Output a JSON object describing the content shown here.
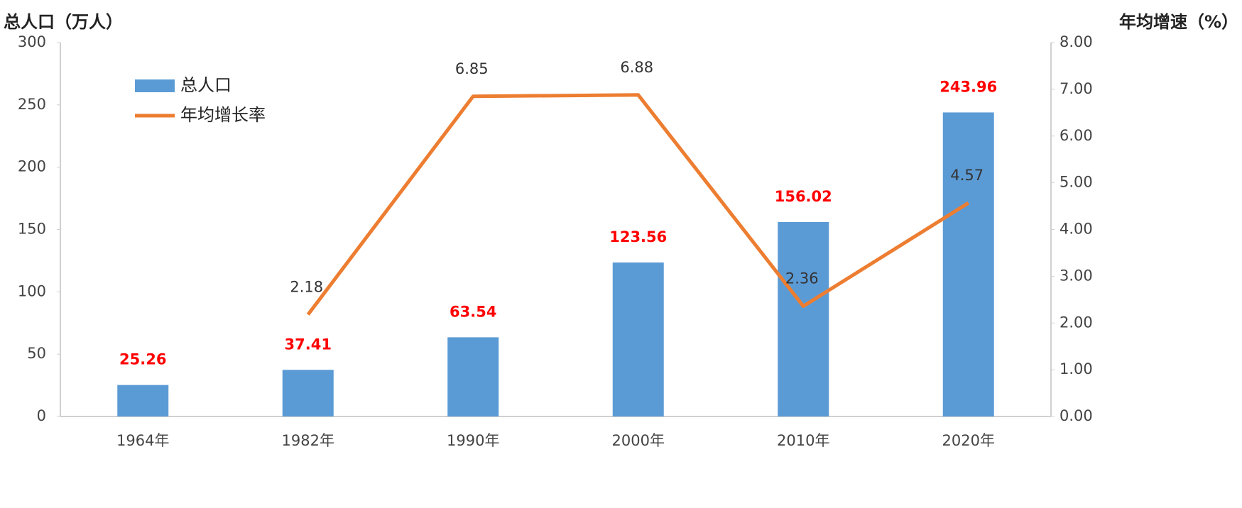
{
  "chart_data": {
    "type": "bar-line",
    "y_label": "总人口（万人）",
    "y2_label": "年均增速（%）",
    "categories": [
      "1964年",
      "1982年",
      "1990年",
      "2000年",
      "2010年",
      "2020年"
    ],
    "series": [
      {
        "name": "总人口",
        "type": "bar",
        "color": "#5b9bd5",
        "label_color": "#ff0000",
        "values": [
          25.26,
          37.41,
          63.54,
          123.56,
          156.02,
          243.96
        ]
      },
      {
        "name": "年均增长率",
        "type": "line",
        "axis": "y2",
        "color": "#ed7d31",
        "label_color": "#333333",
        "values": [
          null,
          2.18,
          6.85,
          6.88,
          2.36,
          4.57
        ]
      }
    ],
    "ylim": [
      0,
      300
    ],
    "yticks": [
      0,
      50,
      100,
      150,
      200,
      250,
      300
    ],
    "y2lim": [
      0,
      8
    ],
    "y2ticks": [
      {
        "value": 0,
        "label": "0.00"
      },
      {
        "value": 1,
        "label": "1.00"
      },
      {
        "value": 2,
        "label": "2.00"
      },
      {
        "value": 3,
        "label": "3.00"
      },
      {
        "value": 4,
        "label": "4.00"
      },
      {
        "value": 5,
        "label": "5.00"
      },
      {
        "value": 6,
        "label": "6.00"
      },
      {
        "value": 7,
        "label": "7.00"
      },
      {
        "value": 8,
        "label": "8.00"
      }
    ],
    "grid": false,
    "legend": "top-left"
  }
}
